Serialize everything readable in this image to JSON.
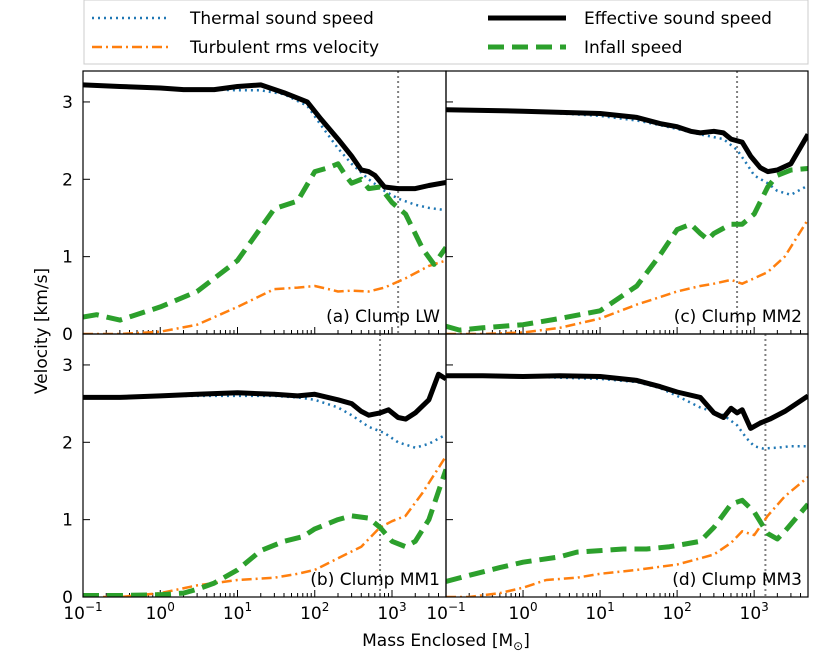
{
  "legend": {
    "entries": [
      {
        "key": "thermal",
        "label": "Thermal sound speed",
        "color": "#1f77b4",
        "style": "dotted"
      },
      {
        "key": "effective",
        "label": "Effective sound speed",
        "color": "#000000",
        "style": "solid"
      },
      {
        "key": "turbulent",
        "label": "Turbulent rms velocity",
        "color": "#ff7f0e",
        "style": "dashdot"
      },
      {
        "key": "infall",
        "label": "Infall speed",
        "color": "#2ca02c",
        "style": "dashed"
      }
    ]
  },
  "axes": {
    "xlabel_text": "Mass Enclosed [M",
    "xlabel_sub": "⊙",
    "xlabel_end": "]",
    "ylabel": "Velocity [km/s]",
    "x_ticks": [
      {
        "base": "10",
        "exp": "−1",
        "value": 0.1
      },
      {
        "base": "10",
        "exp": "0",
        "value": 1
      },
      {
        "base": "10",
        "exp": "1",
        "value": 10
      },
      {
        "base": "10",
        "exp": "2",
        "value": 100
      },
      {
        "base": "10",
        "exp": "3",
        "value": 1000
      }
    ],
    "y_ticks": [
      {
        "label": "0",
        "value": 0
      },
      {
        "label": "1",
        "value": 1
      },
      {
        "label": "2",
        "value": 2
      },
      {
        "label": "3",
        "value": 3
      }
    ]
  },
  "chart_data": [
    {
      "id": "a",
      "type": "line",
      "title": "(a) Clump LW",
      "xscale": "log",
      "xlim": [
        0.1,
        5000
      ],
      "ylim": [
        0,
        3.4
      ],
      "vline": 1200,
      "series": [
        {
          "key": "thermal",
          "x": [
            0.1,
            1,
            5,
            10,
            20,
            40,
            80,
            120,
            200,
            300,
            500,
            800,
            1200,
            2000,
            3000,
            5000
          ],
          "y": [
            3.22,
            3.18,
            3.16,
            3.15,
            3.15,
            3.1,
            2.95,
            2.7,
            2.4,
            2.2,
            2.0,
            1.85,
            1.75,
            1.67,
            1.63,
            1.6
          ]
        },
        {
          "key": "effective",
          "x": [
            0.1,
            0.3,
            1,
            2,
            5,
            10,
            20,
            40,
            80,
            120,
            200,
            300,
            400,
            500,
            600,
            800,
            1200,
            2000,
            3000,
            5000
          ],
          "y": [
            3.22,
            3.2,
            3.18,
            3.16,
            3.16,
            3.2,
            3.22,
            3.12,
            3.0,
            2.78,
            2.52,
            2.3,
            2.12,
            2.1,
            2.05,
            1.9,
            1.88,
            1.88,
            1.92,
            1.96
          ]
        },
        {
          "key": "turbulent",
          "x": [
            0.1,
            0.3,
            1,
            3,
            10,
            30,
            60,
            100,
            150,
            200,
            300,
            500,
            800,
            1500,
            3000,
            5000
          ],
          "y": [
            0.0,
            0.0,
            0.03,
            0.12,
            0.35,
            0.58,
            0.6,
            0.62,
            0.58,
            0.55,
            0.56,
            0.55,
            0.6,
            0.72,
            0.88,
            0.95
          ]
        },
        {
          "key": "infall",
          "x": [
            0.1,
            0.15,
            0.3,
            1,
            3,
            10,
            30,
            60,
            100,
            150,
            200,
            250,
            300,
            400,
            500,
            700,
            1000,
            1500,
            2500,
            3500,
            5000
          ],
          "y": [
            0.22,
            0.25,
            0.18,
            0.35,
            0.55,
            0.95,
            1.62,
            1.72,
            2.1,
            2.15,
            2.2,
            2.05,
            1.95,
            2.0,
            1.88,
            1.9,
            1.7,
            1.55,
            1.1,
            0.9,
            1.12
          ]
        }
      ]
    },
    {
      "id": "c",
      "type": "line",
      "title": "(c) Clump MM2",
      "xscale": "log",
      "xlim": [
        0.1,
        5000
      ],
      "ylim": [
        0,
        3.4
      ],
      "vline": 600,
      "series": [
        {
          "key": "thermal",
          "x": [
            0.1,
            1,
            10,
            30,
            60,
            100,
            200,
            400,
            600,
            800,
            1000,
            1500,
            2000,
            3000,
            5000
          ],
          "y": [
            2.9,
            2.88,
            2.82,
            2.76,
            2.7,
            2.65,
            2.58,
            2.52,
            2.38,
            2.2,
            2.05,
            1.95,
            1.85,
            1.8,
            1.92
          ]
        },
        {
          "key": "effective",
          "x": [
            0.1,
            1,
            10,
            30,
            60,
            100,
            150,
            200,
            300,
            400,
            500,
            700,
            900,
            1200,
            1500,
            2000,
            3000,
            5000
          ],
          "y": [
            2.9,
            2.88,
            2.85,
            2.8,
            2.72,
            2.68,
            2.62,
            2.6,
            2.62,
            2.6,
            2.52,
            2.48,
            2.3,
            2.15,
            2.1,
            2.12,
            2.2,
            2.58
          ]
        },
        {
          "key": "turbulent",
          "x": [
            0.1,
            0.3,
            1,
            3,
            10,
            30,
            100,
            200,
            300,
            500,
            700,
            1000,
            1500,
            2500,
            5000
          ],
          "y": [
            0.0,
            0.0,
            0.02,
            0.08,
            0.2,
            0.38,
            0.55,
            0.62,
            0.65,
            0.7,
            0.65,
            0.72,
            0.8,
            1.0,
            1.48
          ]
        },
        {
          "key": "infall",
          "x": [
            0.1,
            0.15,
            0.3,
            1,
            3,
            10,
            30,
            60,
            100,
            150,
            200,
            250,
            300,
            500,
            700,
            1000,
            1500,
            2000,
            3000,
            5000
          ],
          "y": [
            0.1,
            0.05,
            0.08,
            0.12,
            0.2,
            0.3,
            0.62,
            1.02,
            1.35,
            1.42,
            1.3,
            1.22,
            1.3,
            1.42,
            1.42,
            1.55,
            1.9,
            2.05,
            2.12,
            2.14
          ]
        }
      ]
    },
    {
      "id": "b",
      "type": "line",
      "title": "(b) Clump MM1",
      "xscale": "log",
      "xlim": [
        0.1,
        5000
      ],
      "ylim": [
        0,
        3.4
      ],
      "vline": 700,
      "series": [
        {
          "key": "thermal",
          "x": [
            0.1,
            1,
            10,
            30,
            60,
            100,
            200,
            300,
            500,
            800,
            1200,
            2000,
            3000,
            5000
          ],
          "y": [
            2.58,
            2.6,
            2.6,
            2.6,
            2.58,
            2.55,
            2.45,
            2.35,
            2.2,
            2.12,
            2.0,
            1.93,
            1.98,
            2.1
          ]
        },
        {
          "key": "effective",
          "x": [
            0.1,
            0.3,
            1,
            3,
            10,
            30,
            60,
            100,
            200,
            300,
            400,
            500,
            700,
            900,
            1200,
            1500,
            2000,
            3000,
            4000,
            5000
          ],
          "y": [
            2.58,
            2.58,
            2.6,
            2.62,
            2.64,
            2.62,
            2.6,
            2.62,
            2.55,
            2.5,
            2.4,
            2.35,
            2.38,
            2.42,
            2.32,
            2.3,
            2.38,
            2.55,
            2.88,
            2.82
          ]
        },
        {
          "key": "turbulent",
          "x": [
            0.1,
            0.3,
            1,
            3,
            10,
            30,
            60,
            100,
            200,
            400,
            700,
            1000,
            1500,
            2500,
            5000
          ],
          "y": [
            0.0,
            0.0,
            0.05,
            0.15,
            0.22,
            0.25,
            0.3,
            0.35,
            0.5,
            0.65,
            0.9,
            0.98,
            1.05,
            1.35,
            1.82
          ]
        },
        {
          "key": "infall",
          "x": [
            0.1,
            0.3,
            1,
            2,
            3,
            5,
            10,
            20,
            40,
            70,
            100,
            200,
            300,
            500,
            700,
            1000,
            1500,
            2000,
            3000,
            5000
          ],
          "y": [
            0.02,
            0.02,
            0.03,
            0.05,
            0.1,
            0.18,
            0.35,
            0.6,
            0.72,
            0.78,
            0.88,
            1.0,
            1.05,
            1.02,
            0.9,
            0.72,
            0.65,
            0.72,
            1.0,
            1.65
          ]
        }
      ]
    },
    {
      "id": "d",
      "type": "line",
      "title": "(d) Clump MM3",
      "xscale": "log",
      "xlim": [
        0.1,
        5000
      ],
      "ylim": [
        0,
        3.4
      ],
      "vline": 1400,
      "series": [
        {
          "key": "thermal",
          "x": [
            0.1,
            1,
            10,
            30,
            60,
            100,
            200,
            400,
            600,
            800,
            1000,
            1300,
            2000,
            3000,
            5000
          ],
          "y": [
            2.85,
            2.85,
            2.82,
            2.78,
            2.7,
            2.6,
            2.45,
            2.35,
            2.22,
            2.05,
            1.95,
            1.92,
            1.93,
            1.95,
            1.95
          ]
        },
        {
          "key": "effective",
          "x": [
            0.1,
            0.3,
            1,
            3,
            10,
            30,
            60,
            100,
            200,
            300,
            400,
            500,
            600,
            700,
            900,
            1200,
            1600,
            2500,
            5000
          ],
          "y": [
            2.86,
            2.86,
            2.85,
            2.86,
            2.85,
            2.8,
            2.72,
            2.65,
            2.58,
            2.38,
            2.32,
            2.44,
            2.38,
            2.42,
            2.18,
            2.25,
            2.3,
            2.4,
            2.6
          ]
        },
        {
          "key": "turbulent",
          "x": [
            0.1,
            0.2,
            0.5,
            1,
            2,
            5,
            10,
            30,
            100,
            200,
            300,
            500,
            700,
            1000,
            1500,
            2500,
            5000
          ],
          "y": [
            0.0,
            0.0,
            0.05,
            0.12,
            0.22,
            0.25,
            0.3,
            0.35,
            0.42,
            0.5,
            0.55,
            0.7,
            0.85,
            0.8,
            1.05,
            1.3,
            1.55
          ]
        },
        {
          "key": "infall",
          "x": [
            0.1,
            0.2,
            0.5,
            1,
            3,
            5,
            10,
            20,
            40,
            80,
            120,
            200,
            300,
            500,
            700,
            1000,
            1500,
            2000,
            2500,
            5000
          ],
          "y": [
            0.2,
            0.28,
            0.38,
            0.45,
            0.52,
            0.58,
            0.6,
            0.62,
            0.62,
            0.65,
            0.68,
            0.72,
            0.9,
            1.2,
            1.25,
            1.1,
            0.82,
            0.75,
            0.85,
            1.2
          ]
        }
      ]
    }
  ]
}
